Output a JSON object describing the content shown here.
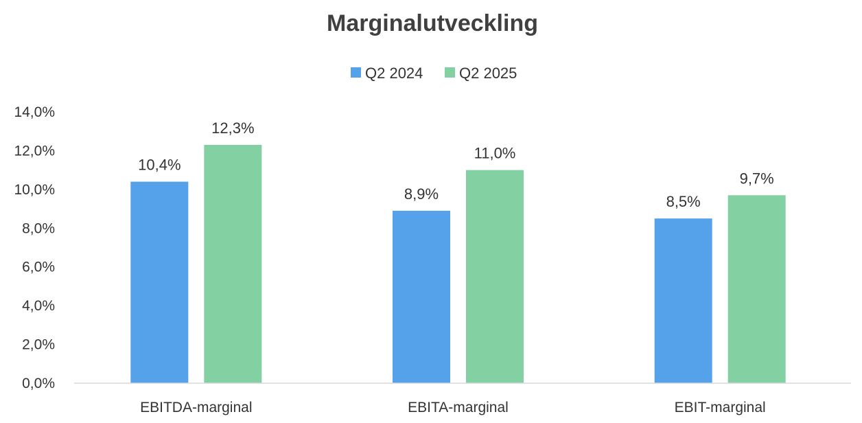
{
  "chart_data": {
    "type": "bar",
    "title": "Marginalutveckling",
    "categories": [
      "EBITDA-marginal",
      "EBITA-marginal",
      "EBIT-marginal"
    ],
    "series": [
      {
        "name": "Q2 2024",
        "values": [
          10.4,
          8.9,
          8.5
        ],
        "labels": [
          "10,4%",
          "8,9%",
          "8,5%"
        ],
        "color": "#55A1EA"
      },
      {
        "name": "Q2 2025",
        "values": [
          12.3,
          11.0,
          9.7
        ],
        "labels": [
          "12,3%",
          "11,0%",
          "9,7%"
        ],
        "color": "#83D0A2"
      }
    ],
    "yticks": [
      0,
      2,
      4,
      6,
      8,
      10,
      12,
      14
    ],
    "ytick_labels": [
      "0,0%",
      "2,0%",
      "4,0%",
      "6,0%",
      "8,0%",
      "10,0%",
      "12,0%",
      "14,0%"
    ],
    "ylim": [
      0,
      14
    ],
    "xlabel": "",
    "ylabel": "",
    "grid": false,
    "legend_position": "top-center"
  }
}
